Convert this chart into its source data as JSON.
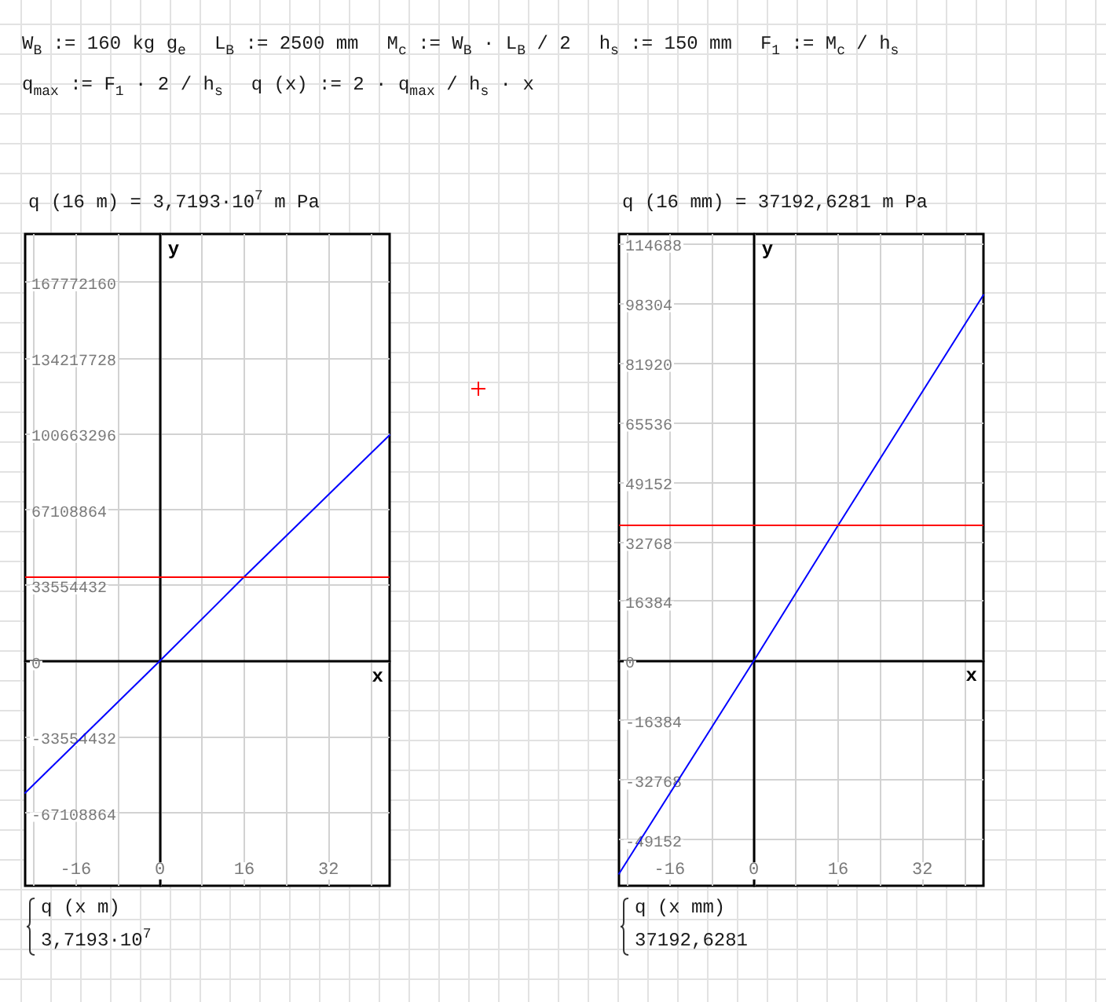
{
  "chart_data": [
    {
      "type": "other",
      "annotations": [
        "W$_{B}$ := 160 kg g$_{e}$",
        "L$_{B}$ := 2500 mm",
        "M$_{c}$ := W$_{B}$ · L$_{B}$ / 2",
        "h$_{s}$ := 150 mm",
        "F$_{1}$ := M$_{c}$ / h$_{s}$",
        "q$_{max}$ := F$_{1}$ · 2 / h$_{s}$",
        "q (x) := 2 · q$_{max}$ / h$_{s}$ · x"
      ]
    },
    {
      "type": "line",
      "title": "q (16 m) = 3,7193·10$^{7}$ m Pa",
      "xlabel": "x",
      "ylabel": "y",
      "x": [
        -25.6,
        0,
        16,
        43.6
      ],
      "values": [
        -58500000,
        0,
        37200000,
        100000000
      ],
      "color": "#0000ff",
      "xlim": [
        -25.6,
        43.6
      ],
      "ylim": [
        -99600000,
        189000000
      ],
      "xticks": [
        {
          "value": -24,
          "label": null
        },
        -16,
        {
          "value": -8,
          "label": null
        },
        0,
        {
          "value": 8,
          "label": null
        },
        16,
        {
          "value": 24,
          "label": null
        },
        32,
        {
          "value": 40,
          "label": null
        }
      ],
      "yticks": [
        -67108864,
        -33554432,
        0,
        33554432,
        67108864,
        100663296,
        134217728,
        167772160
      ],
      "ref_lines": [
        {
          "axis": "y",
          "value": 37193000,
          "color": "#ff0000"
        }
      ],
      "grid": true,
      "annotations": [
        "q (x m)",
        "3,7193·10$^{7}$"
      ]
    },
    {
      "type": "line",
      "title": "q (16 mm) = 37192,6281 m Pa",
      "xlabel": "x",
      "ylabel": "y",
      "x": [
        -25.6,
        0,
        16,
        43.6
      ],
      "values": [
        -58500,
        0,
        37200,
        100500
      ],
      "color": "#0000ff",
      "xlim": [
        -25.6,
        43.6
      ],
      "ylim": [
        -61800,
        117200
      ],
      "xticks": [
        {
          "value": -24,
          "label": null
        },
        -16,
        {
          "value": -8,
          "label": null
        },
        0,
        {
          "value": 8,
          "label": null
        },
        16,
        {
          "value": 24,
          "label": null
        },
        32,
        {
          "value": 40,
          "label": null
        }
      ],
      "yticks": [
        -49152,
        -32768,
        -16384,
        0,
        16384,
        32768,
        49152,
        65536,
        81920,
        98304,
        114688
      ],
      "ref_lines": [
        {
          "axis": "y",
          "value": 37192.6281,
          "color": "#ff0000"
        }
      ],
      "grid": true,
      "annotations": [
        "q (x mm)",
        "37192,6281"
      ]
    }
  ]
}
